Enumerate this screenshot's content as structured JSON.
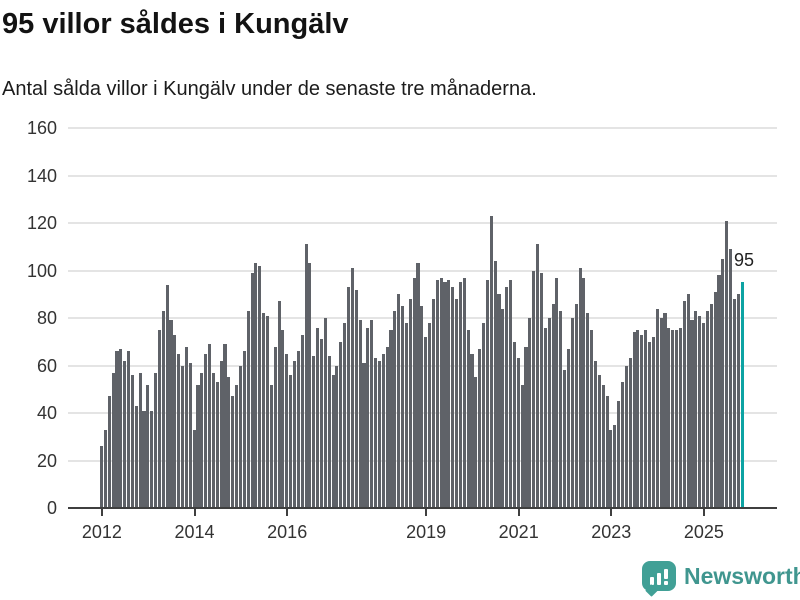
{
  "header": {
    "title": "95 villor såldes i Kungälv",
    "subtitle": "Antal sålda villor i Kungälv under de senaste tre månaderna."
  },
  "chart_data": {
    "type": "bar",
    "title": "95 villor såldes i Kungälv",
    "xlabel": "",
    "ylabel": "",
    "x_start": "2012-01",
    "x_end": "2025-11",
    "x_frequency": "monthly",
    "values": [
      26,
      33,
      47,
      57,
      66,
      67,
      62,
      66,
      56,
      43,
      57,
      41,
      52,
      41,
      57,
      75,
      83,
      94,
      79,
      73,
      65,
      60,
      68,
      61,
      33,
      52,
      57,
      65,
      69,
      57,
      53,
      62,
      69,
      55,
      47,
      52,
      60,
      66,
      83,
      99,
      103,
      102,
      82,
      81,
      52,
      68,
      87,
      75,
      65,
      56,
      62,
      66,
      73,
      111,
      103,
      64,
      76,
      71,
      80,
      64,
      56,
      60,
      70,
      78,
      93,
      101,
      92,
      79,
      61,
      76,
      79,
      63,
      62,
      65,
      68,
      75,
      83,
      90,
      85,
      78,
      88,
      97,
      103,
      85,
      72,
      78,
      88,
      96,
      97,
      95,
      96,
      93,
      88,
      95,
      97,
      75,
      65,
      55,
      67,
      78,
      96,
      123,
      104,
      90,
      84,
      93,
      96,
      70,
      63,
      52,
      68,
      80,
      100,
      111,
      99,
      76,
      80,
      86,
      97,
      83,
      58,
      67,
      80,
      86,
      101,
      97,
      82,
      75,
      62,
      56,
      52,
      47,
      33,
      35,
      45,
      53,
      60,
      63,
      74,
      75,
      73,
      75,
      70,
      72,
      84,
      80,
      82,
      76,
      75,
      75,
      76,
      87,
      90,
      79,
      83,
      81,
      78,
      83,
      86,
      91,
      98,
      105,
      121,
      109,
      88,
      90,
      95
    ],
    "highlight": {
      "index": 166,
      "value": 95,
      "label": "95",
      "color": "#0da3a3"
    },
    "bar_color": "#5f6268",
    "y_axis": {
      "ticks": [
        0,
        20,
        40,
        60,
        80,
        100,
        120,
        140,
        160
      ],
      "range": [
        0,
        160
      ]
    },
    "x_axis": {
      "tick_years": [
        "2012",
        "2014",
        "2016",
        "2019",
        "2021",
        "2023",
        "2025"
      ],
      "base_year": 2012
    },
    "grid": true,
    "legend": false
  },
  "footer": {
    "brand": "Newsworthy",
    "brand_color": "#41a096",
    "logo_icon": "bar-chart-speech-bubble-icon"
  }
}
